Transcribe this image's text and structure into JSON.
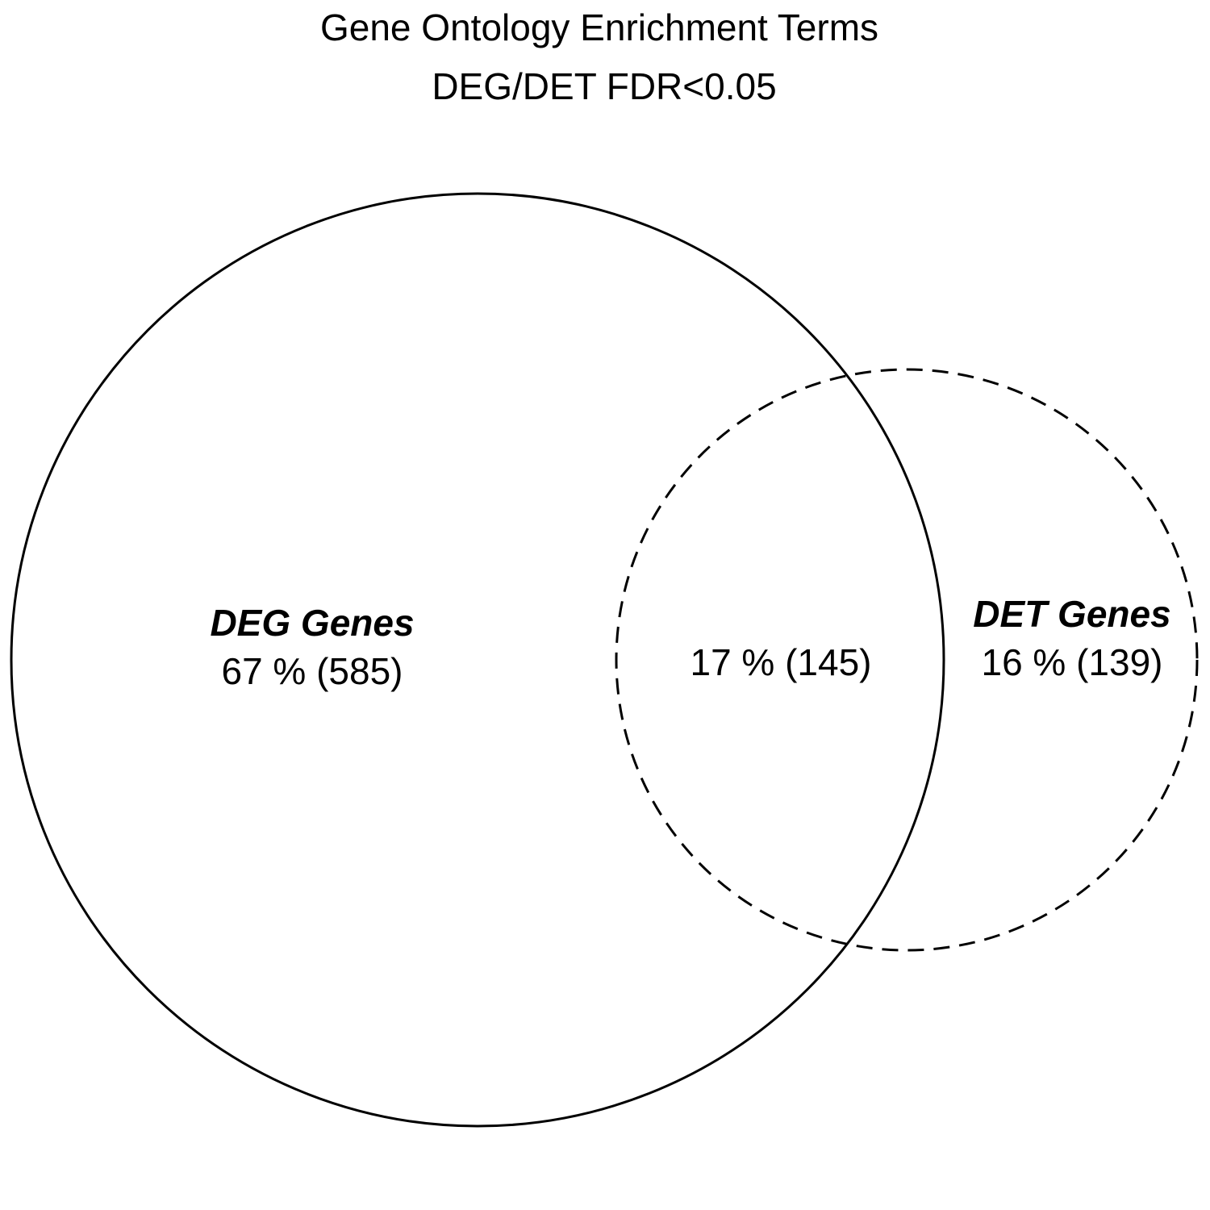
{
  "chart_data": {
    "type": "venn",
    "title": "Gene Ontology Enrichment Terms",
    "subtitle": "DEG/DET FDR<0.05",
    "sets": [
      {
        "key": "deg",
        "name": "DEG Genes",
        "only_percent": 67,
        "only_count": 585,
        "only_label": "67 % (585)",
        "line_style": "solid",
        "stroke_color": "#000000"
      },
      {
        "key": "det",
        "name": "DET Genes",
        "only_percent": 16,
        "only_count": 139,
        "only_label": "16 % (139)",
        "line_style": "dashed",
        "stroke_color": "#000000"
      }
    ],
    "overlap": {
      "percent": 17,
      "count": 145,
      "label": "17 % (145)"
    }
  }
}
